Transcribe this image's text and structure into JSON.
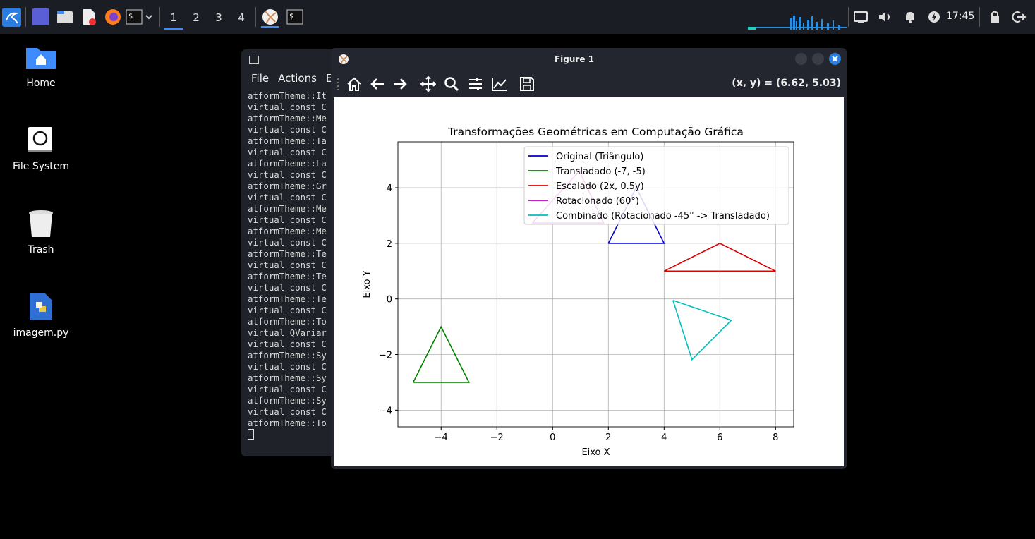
{
  "taskbar": {
    "workspaces": [
      "1",
      "2",
      "3",
      "4"
    ],
    "clock": "17:45"
  },
  "desktop": {
    "icons": [
      {
        "label": "Home"
      },
      {
        "label": "File System"
      },
      {
        "label": "Trash"
      },
      {
        "label": "imagem.py"
      }
    ]
  },
  "terminal": {
    "menu": [
      "File",
      "Actions",
      "E"
    ],
    "lines": [
      "atformTheme::It",
      "virtual const C",
      "atformTheme::Me",
      "virtual const C",
      "atformTheme::Ta",
      "virtual const C",
      "atformTheme::La",
      "virtual const C",
      "atformTheme::Gr",
      "virtual const C",
      "atformTheme::Me",
      "virtual const C",
      "atformTheme::Me",
      "virtual const C",
      "atformTheme::Te",
      "virtual const C",
      "atformTheme::Te",
      "virtual const C",
      "atformTheme::Te",
      "virtual const C",
      "atformTheme::To",
      "virtual QVariar",
      "virtual const C",
      "atformTheme::Sy",
      "virtual const C",
      "atformTheme::Sy",
      "virtual const C",
      "atformTheme::Sy",
      "virtual const C",
      "atformTheme::To"
    ]
  },
  "figure": {
    "title": "Figure 1",
    "coord": "(x, y) = (6.62, 5.03)"
  },
  "chart_data": {
    "type": "line",
    "title": "Transformações Geométricas em Computação Gráfica",
    "xlabel": "Eixo X",
    "ylabel": "Eixo Y",
    "xlim": [
      -5.55,
      8.65
    ],
    "ylim": [
      -4.6,
      5.65
    ],
    "xticks": [
      -4,
      -2,
      0,
      2,
      4,
      6,
      8
    ],
    "yticks": [
      -4,
      -2,
      0,
      2,
      4
    ],
    "xtick_labels": [
      "−4",
      "−2",
      "0",
      "2",
      "4",
      "6",
      "8"
    ],
    "ytick_labels": [
      "−4",
      "−2",
      "0",
      "2",
      "4"
    ],
    "grid": true,
    "legend_position": "top-right",
    "series": [
      {
        "name": "Original (Triângulo)",
        "color": "#0000cc",
        "points": [
          [
            2,
            2
          ],
          [
            4,
            2
          ],
          [
            3,
            4
          ],
          [
            2,
            2
          ]
        ]
      },
      {
        "name": "Transladado (-7, -5)",
        "color": "#008000",
        "points": [
          [
            -5,
            -3
          ],
          [
            -3,
            -3
          ],
          [
            -4,
            -1
          ],
          [
            -5,
            -3
          ]
        ]
      },
      {
        "name": "Escalado (2x, 0.5y)",
        "color": "#e00000",
        "points": [
          [
            4,
            1
          ],
          [
            8,
            1
          ],
          [
            6,
            2
          ],
          [
            4,
            1
          ]
        ]
      },
      {
        "name": "Rotacionado (60°)",
        "color": "#bf00bf",
        "points": [
          [
            -0.73,
            2.73
          ],
          [
            1.83,
            2.73
          ],
          [
            0.96,
            4.6
          ],
          [
            -0.73,
            2.73
          ]
        ]
      },
      {
        "name": "Combinado (Rotacionado -45° -> Transladado)",
        "color": "#00bfbf",
        "points": [
          [
            4.32,
            -0.05
          ],
          [
            6.41,
            -0.77
          ],
          [
            5.0,
            -2.18
          ],
          [
            4.32,
            -0.05
          ]
        ]
      }
    ]
  }
}
